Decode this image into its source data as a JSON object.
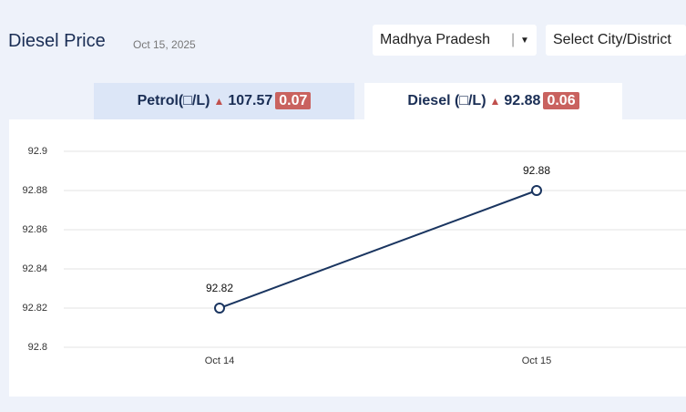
{
  "header": {
    "title": "Diesel Price",
    "date": "Oct 15, 2025",
    "state": "Madhya Pradesh",
    "city": "Select City/District"
  },
  "tabs": [
    {
      "label": "Petrol(□/L)",
      "price": 107.57,
      "change": 0.07
    },
    {
      "label": "Diesel (□/L)",
      "price": 92.88,
      "change": 0.06
    }
  ],
  "chart_data": {
    "type": "line",
    "categories": [
      "Oct 14",
      "Oct 15"
    ],
    "values": [
      92.82,
      92.88
    ],
    "color": "#1a3560",
    "ylim": [
      92.8,
      92.9
    ],
    "yticks": [
      92.8,
      92.82,
      92.84,
      92.86,
      92.88,
      92.9
    ],
    "grid": true
  }
}
